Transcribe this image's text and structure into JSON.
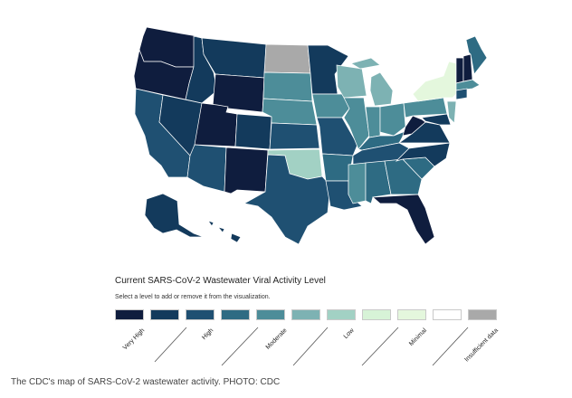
{
  "map": {
    "region": "United States",
    "colors": {
      "very_high": "#0f1d3e",
      "high_dark": "#133a5c",
      "high": "#1f5072",
      "high_light": "#2e6b83",
      "moderate": "#4d8d99",
      "moderate_light": "#7db2b3",
      "low": "#a2d1c4",
      "minimal": "#e4f7dd",
      "insufficient": "#a9a9a9"
    },
    "states": [
      {
        "name": "Washington",
        "level": "very_high"
      },
      {
        "name": "Oregon",
        "level": "very_high"
      },
      {
        "name": "California",
        "level": "high"
      },
      {
        "name": "Nevada",
        "level": "high_dark"
      },
      {
        "name": "Idaho",
        "level": "high_dark"
      },
      {
        "name": "Montana",
        "level": "high_dark"
      },
      {
        "name": "Wyoming",
        "level": "very_high"
      },
      {
        "name": "Utah",
        "level": "very_high"
      },
      {
        "name": "Arizona",
        "level": "high"
      },
      {
        "name": "Colorado",
        "level": "high_dark"
      },
      {
        "name": "New Mexico",
        "level": "very_high"
      },
      {
        "name": "North Dakota",
        "level": "insufficient"
      },
      {
        "name": "South Dakota",
        "level": "moderate"
      },
      {
        "name": "Nebraska",
        "level": "moderate"
      },
      {
        "name": "Kansas",
        "level": "high"
      },
      {
        "name": "Oklahoma",
        "level": "low"
      },
      {
        "name": "Texas",
        "level": "high"
      },
      {
        "name": "Minnesota",
        "level": "high_dark"
      },
      {
        "name": "Iowa",
        "level": "moderate"
      },
      {
        "name": "Missouri",
        "level": "high"
      },
      {
        "name": "Arkansas",
        "level": "high_light"
      },
      {
        "name": "Louisiana",
        "level": "high"
      },
      {
        "name": "Wisconsin",
        "level": "moderate_light"
      },
      {
        "name": "Illinois",
        "level": "moderate"
      },
      {
        "name": "Michigan",
        "level": "moderate_light"
      },
      {
        "name": "Indiana",
        "level": "moderate"
      },
      {
        "name": "Ohio",
        "level": "moderate"
      },
      {
        "name": "Kentucky",
        "level": "high_light"
      },
      {
        "name": "Tennessee",
        "level": "high"
      },
      {
        "name": "Mississippi",
        "level": "moderate"
      },
      {
        "name": "Alabama",
        "level": "high_light"
      },
      {
        "name": "Georgia",
        "level": "high_light"
      },
      {
        "name": "Florida",
        "level": "very_high"
      },
      {
        "name": "South Carolina",
        "level": "high_light"
      },
      {
        "name": "North Carolina",
        "level": "high_dark"
      },
      {
        "name": "Virginia",
        "level": "high_dark"
      },
      {
        "name": "West Virginia",
        "level": "very_high"
      },
      {
        "name": "Pennsylvania",
        "level": "moderate"
      },
      {
        "name": "New York",
        "level": "minimal"
      },
      {
        "name": "New Jersey",
        "level": "moderate_light"
      },
      {
        "name": "Maryland",
        "level": "high_dark"
      },
      {
        "name": "Vermont",
        "level": "very_high"
      },
      {
        "name": "New Hampshire",
        "level": "very_high"
      },
      {
        "name": "Maine",
        "level": "high_light"
      },
      {
        "name": "Massachusetts",
        "level": "moderate"
      },
      {
        "name": "Connecticut",
        "level": "high"
      },
      {
        "name": "Alaska",
        "level": "high_dark"
      },
      {
        "name": "Hawaii",
        "level": "high_dark"
      }
    ]
  },
  "legend": {
    "title": "Current SARS-CoV-2 Wastewater Viral Activity Level",
    "instruction": "Select a level to add or remove it from the visualization.",
    "levels": [
      {
        "id": "very_high_a",
        "color": "#0f1d3e"
      },
      {
        "id": "very_high_b",
        "color": "#133a5c"
      },
      {
        "id": "high_a",
        "color": "#1f5072"
      },
      {
        "id": "high_b",
        "color": "#2e6b83"
      },
      {
        "id": "moderate_a",
        "color": "#4d8d99"
      },
      {
        "id": "moderate_b",
        "color": "#7db2b3"
      },
      {
        "id": "low_a",
        "color": "#a2d1c4"
      },
      {
        "id": "low_b",
        "color": "#d7f3d7"
      },
      {
        "id": "minimal_a",
        "color": "#e4f7dd"
      },
      {
        "id": "minimal_b",
        "color": "#ffffff"
      },
      {
        "id": "insufficient",
        "color": "#a9a9a9"
      }
    ],
    "labels": {
      "very_high": "Very High",
      "high": "High",
      "moderate": "Moderate",
      "low": "Low",
      "minimal": "Minimal",
      "insufficient": "Insufficient data"
    }
  },
  "caption": "The CDC's map of SARS-CoV-2 wastewater activity. PHOTO: CDC"
}
